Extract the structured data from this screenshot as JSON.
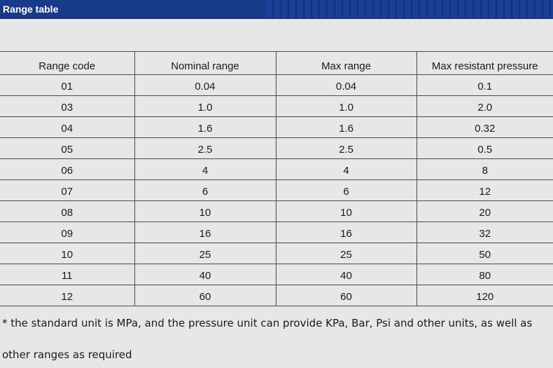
{
  "header": {
    "title": "Range table"
  },
  "table": {
    "columns": [
      "Range code",
      "Nominal range",
      "Max range",
      "Max resistant pressure"
    ],
    "rows": [
      [
        "01",
        "0.04",
        "0.04",
        "0.1"
      ],
      [
        "03",
        "1.0",
        "1.0",
        "2.0"
      ],
      [
        "04",
        "1.6",
        "1.6",
        "0.32"
      ],
      [
        "05",
        "2.5",
        "2.5",
        "0.5"
      ],
      [
        "06",
        "4",
        "4",
        "8"
      ],
      [
        "07",
        "6",
        "6",
        "12"
      ],
      [
        "08",
        "10",
        "10",
        "20"
      ],
      [
        "09",
        "16",
        "16",
        "32"
      ],
      [
        "10",
        "25",
        "25",
        "50"
      ],
      [
        "11",
        "40",
        "40",
        "80"
      ],
      [
        "12",
        "60",
        "60",
        "120"
      ]
    ]
  },
  "footnote": {
    "line1": "* the standard unit is MPa, and the pressure unit can provide KPa, Bar, Psi and other units, as well as",
    "line2": "other ranges as required"
  },
  "colors": {
    "title_bar": "#173a8a",
    "background": "#e7e7e7"
  }
}
